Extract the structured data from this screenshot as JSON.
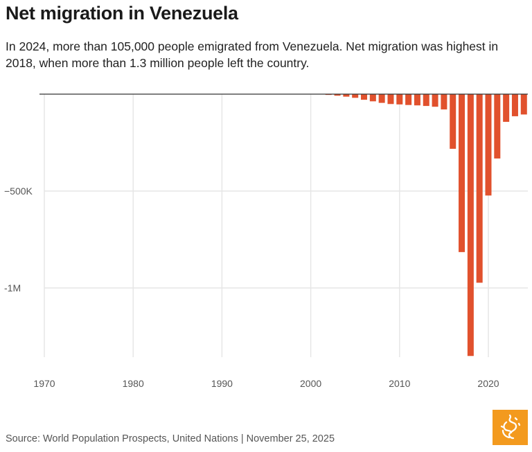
{
  "title": "Net migration in Venezuela",
  "subtitle": "In 2024, more than 105,000 people emigrated from Venezuela. Net migration was highest in 2018, when more than 1.3 million people left the country.",
  "source": "Source: World Population Prospects, United Nations | November 25, 2025",
  "logo": {
    "name": "Al Jazeera",
    "color": "#f39a1e"
  },
  "chart_data": {
    "type": "bar",
    "title": "Net migration in Venezuela",
    "xlabel": "",
    "ylabel": "",
    "xlim": [
      1970,
      2024
    ],
    "ylim": [
      -1351000,
      0
    ],
    "x_ticks": [
      {
        "v": 1970,
        "label": "1970"
      },
      {
        "v": 1980,
        "label": "1980"
      },
      {
        "v": 1990,
        "label": "1990"
      },
      {
        "v": 2000,
        "label": "2000"
      },
      {
        "v": 2010,
        "label": "2010"
      },
      {
        "v": 2020,
        "label": "2020"
      }
    ],
    "y_ticks": [
      {
        "v": -500000,
        "label": "−500K"
      },
      {
        "v": -1000000,
        "label": "-1M"
      }
    ],
    "grid": true,
    "bar_color": "#e1512d",
    "x": [
      2002,
      2003,
      2004,
      2005,
      2006,
      2007,
      2008,
      2009,
      2010,
      2011,
      2012,
      2013,
      2014,
      2015,
      2016,
      2017,
      2018,
      2019,
      2020,
      2021,
      2022,
      2023,
      2024
    ],
    "values": [
      -4000,
      -8000,
      -13000,
      -19000,
      -29000,
      -37000,
      -45000,
      -51000,
      -53000,
      -56000,
      -58000,
      -61000,
      -65000,
      -79000,
      -282000,
      -815000,
      -1351000,
      -973000,
      -523000,
      -332000,
      -143000,
      -114000,
      -105000
    ]
  }
}
